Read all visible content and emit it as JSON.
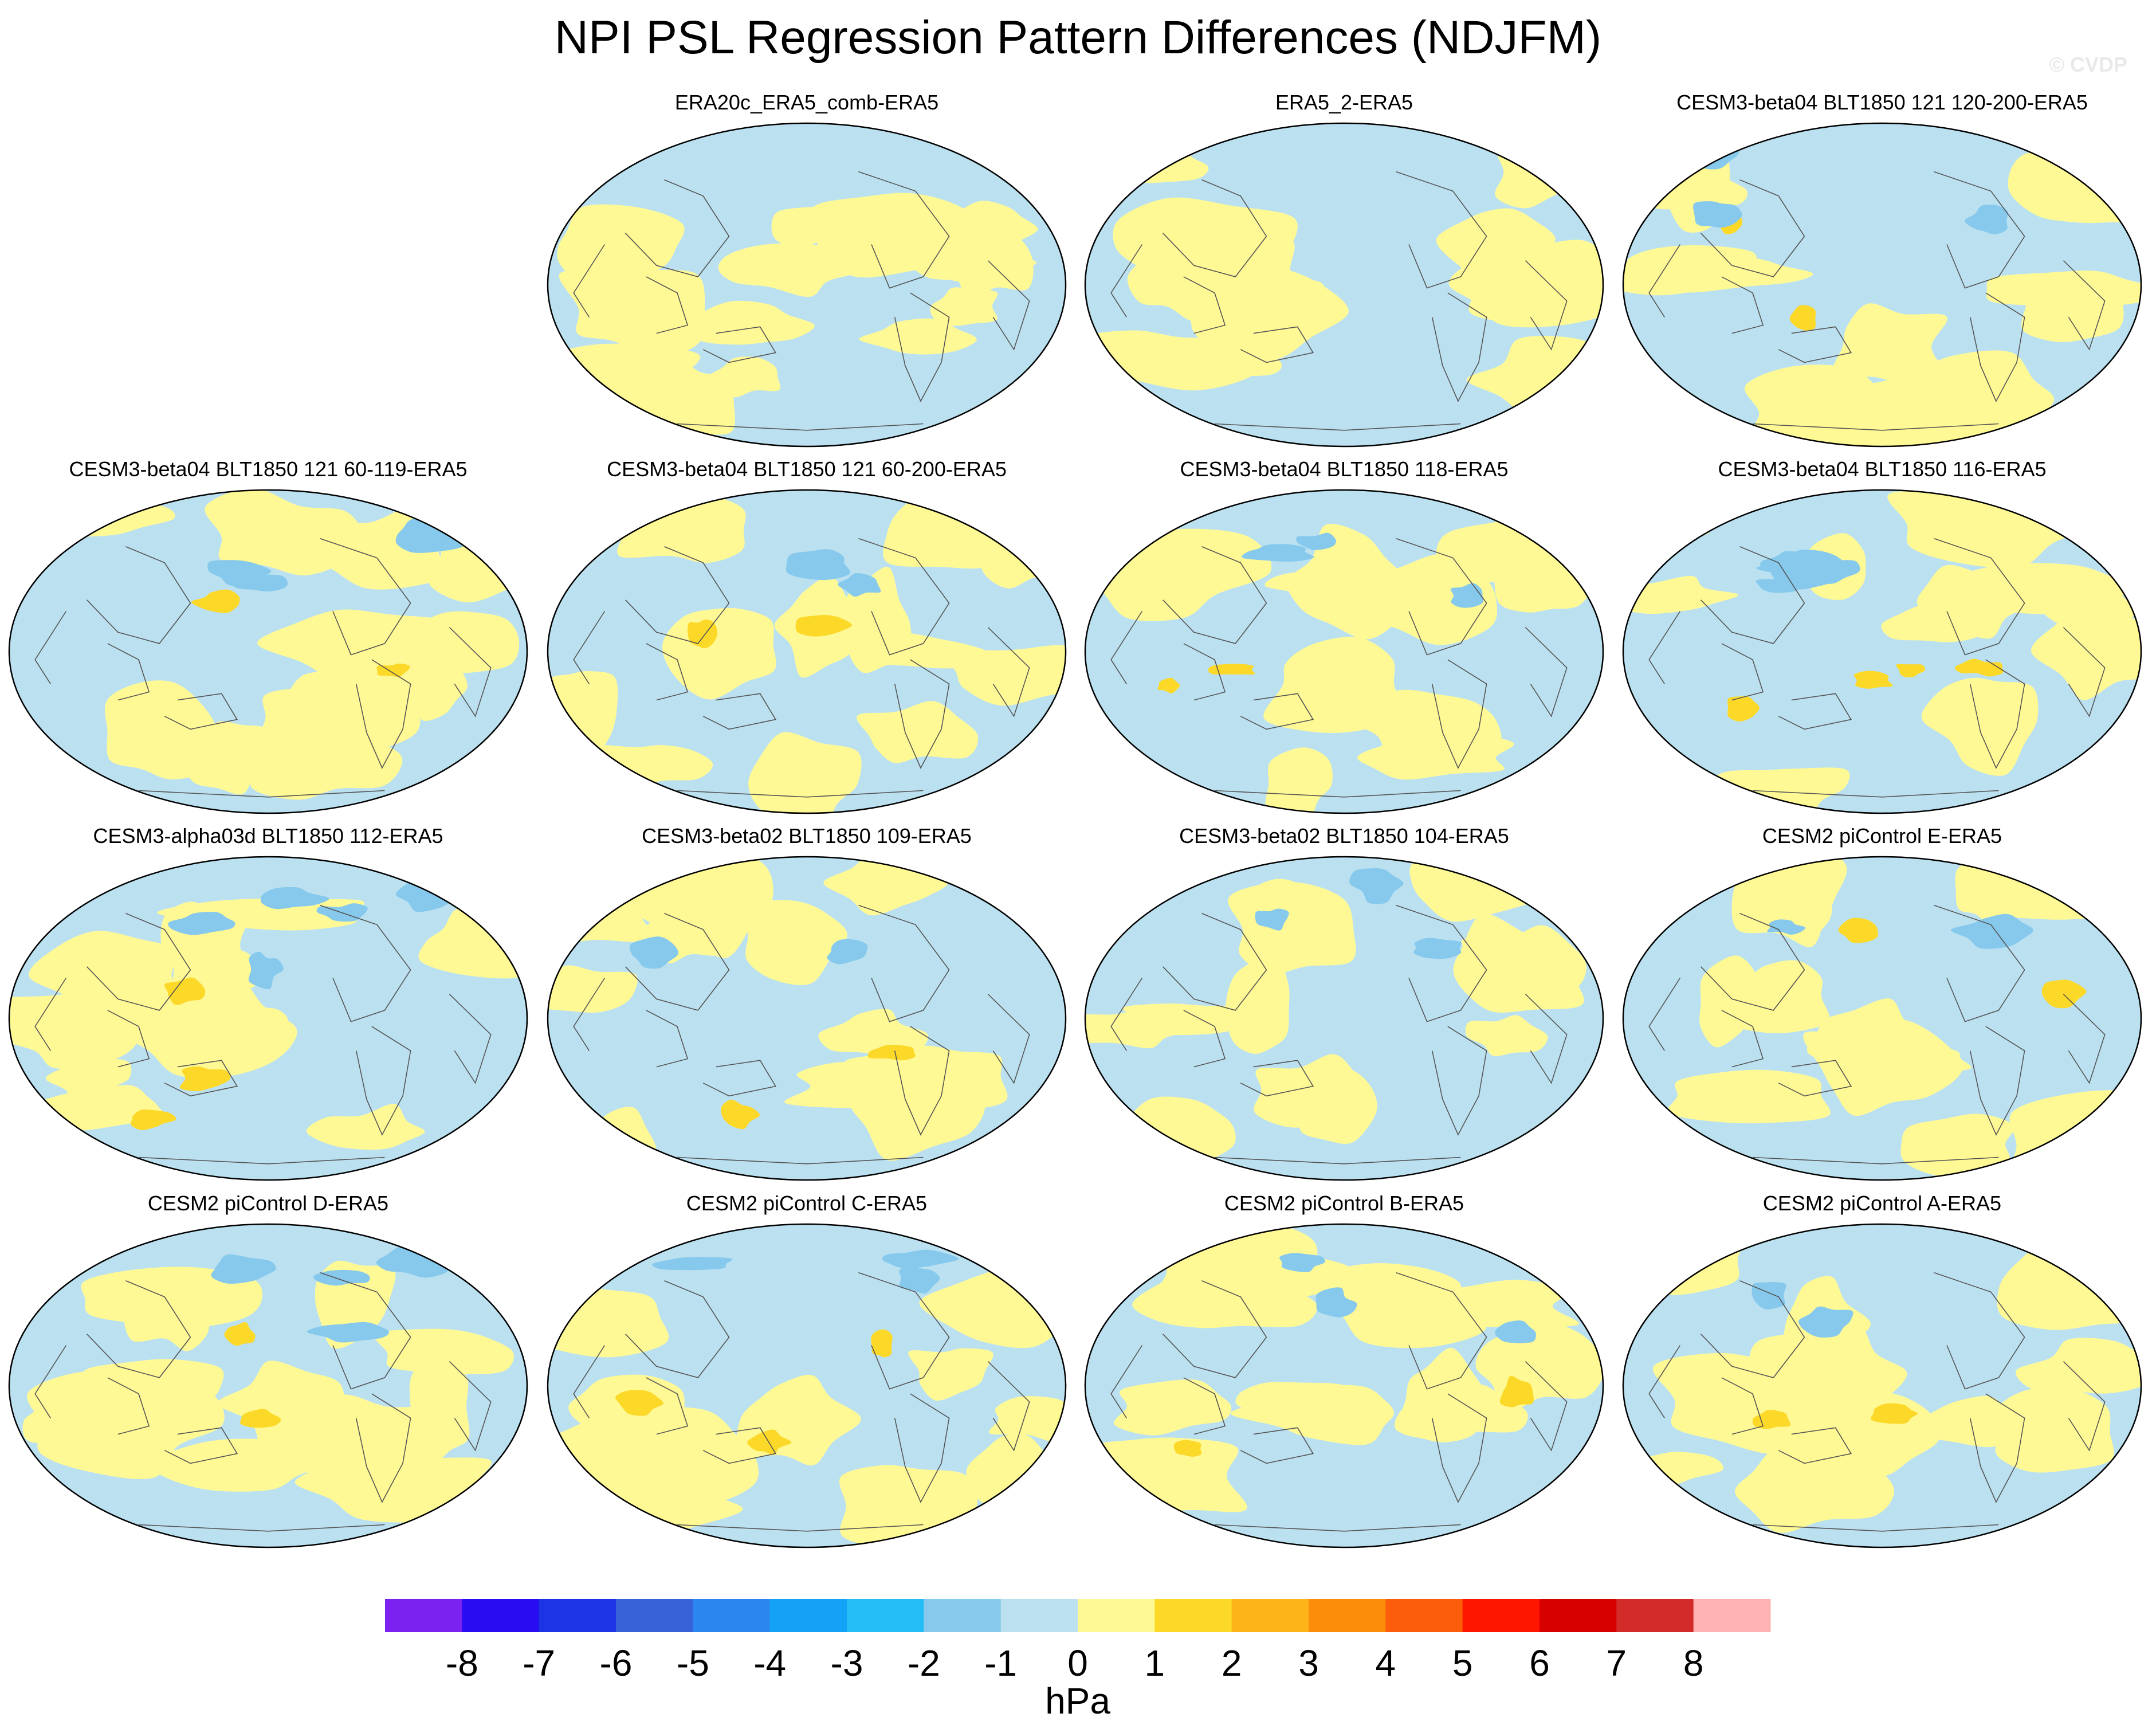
{
  "title": "NPI PSL Regression Pattern Differences (NDJFM)",
  "watermark": "© CVDP",
  "chart_data": {
    "type": "map",
    "projection": "Robinson-like global map centered on the Pacific",
    "variable": "PSL regression onto NPI, difference from ERA5",
    "season": "NDJFM",
    "units": "hPa",
    "colorbar": {
      "levels": [
        -8,
        -7,
        -6,
        -5,
        -4,
        -3,
        -2,
        -1,
        0,
        1,
        2,
        3,
        4,
        5,
        6,
        7,
        8
      ],
      "tick_labels": [
        "-8",
        "-7",
        "-6",
        "-5",
        "-4",
        "-3",
        "-2",
        "-1",
        "0",
        "1",
        "2",
        "3",
        "4",
        "5",
        "6",
        "7",
        "8"
      ],
      "colors": [
        "#7b22f1",
        "#2a0cf2",
        "#1c33e6",
        "#3762d8",
        "#2b86ef",
        "#14a2f7",
        "#25bdf5",
        "#86c9ec",
        "#bbe1f1",
        "#fff995",
        "#fcd929",
        "#fcb419",
        "#fc8d0a",
        "#fc5d0b",
        "#ff1600",
        "#d70000",
        "#d32a2a",
        "#ffb3b3"
      ]
    },
    "panels": [
      {
        "title": "ERA20c_ERA5_comb-ERA5",
        "row": 0,
        "col": 1,
        "seed": 11,
        "pos": 14,
        "neg": 0,
        "strong": 0
      },
      {
        "title": "ERA5_2-ERA5",
        "row": 0,
        "col": 2,
        "seed": 23,
        "pos": 14,
        "neg": 0,
        "strong": 0
      },
      {
        "title": "CESM3-beta04 BLT1850 121 120-200-ERA5",
        "row": 0,
        "col": 3,
        "seed": 37,
        "pos": 12,
        "neg": 3,
        "strong": 2
      },
      {
        "title": "CESM3-beta04 BLT1850 121 60-119-ERA5",
        "row": 1,
        "col": 0,
        "seed": 41,
        "pos": 12,
        "neg": 3,
        "strong": 2
      },
      {
        "title": "CESM3-beta04 BLT1850 121 60-200-ERA5",
        "row": 1,
        "col": 1,
        "seed": 53,
        "pos": 12,
        "neg": 2,
        "strong": 2
      },
      {
        "title": "CESM3-beta04 BLT1850 118-ERA5",
        "row": 1,
        "col": 2,
        "seed": 67,
        "pos": 12,
        "neg": 3,
        "strong": 2
      },
      {
        "title": "CESM3-beta04 BLT1850 116-ERA5",
        "row": 1,
        "col": 3,
        "seed": 71,
        "pos": 11,
        "neg": 5,
        "strong": 4
      },
      {
        "title": "CESM3-alpha03d BLT1850 112-ERA5",
        "row": 2,
        "col": 0,
        "seed": 83,
        "pos": 12,
        "neg": 5,
        "strong": 3
      },
      {
        "title": "CESM3-beta02 BLT1850 109-ERA5",
        "row": 2,
        "col": 1,
        "seed": 97,
        "pos": 12,
        "neg": 2,
        "strong": 2
      },
      {
        "title": "CESM3-beta02 BLT1850 104-ERA5",
        "row": 2,
        "col": 2,
        "seed": 101,
        "pos": 12,
        "neg": 3,
        "strong": 0
      },
      {
        "title": "CESM2 piControl E-ERA5",
        "row": 2,
        "col": 3,
        "seed": 113,
        "pos": 12,
        "neg": 2,
        "strong": 2
      },
      {
        "title": "CESM2 piControl D-ERA5",
        "row": 3,
        "col": 0,
        "seed": 127,
        "pos": 12,
        "neg": 4,
        "strong": 2
      },
      {
        "title": "CESM2 piControl C-ERA5",
        "row": 3,
        "col": 1,
        "seed": 131,
        "pos": 12,
        "neg": 3,
        "strong": 3
      },
      {
        "title": "CESM2 piControl B-ERA5",
        "row": 3,
        "col": 2,
        "seed": 149,
        "pos": 12,
        "neg": 3,
        "strong": 2
      },
      {
        "title": "CESM2 piControl A-ERA5",
        "row": 3,
        "col": 3,
        "seed": 157,
        "pos": 12,
        "neg": 2,
        "strong": 2
      }
    ]
  }
}
